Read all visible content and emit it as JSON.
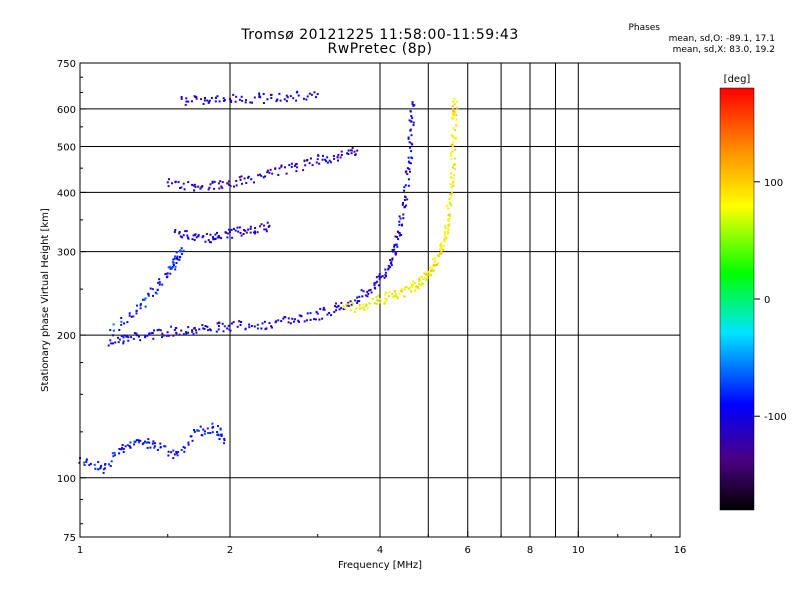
{
  "header": {
    "title_line1": "Tromsø 20121225 11:58:00-11:59:43",
    "title_line2": "RwPretec (8p)",
    "stats_title": "Phases",
    "stats_line1": "mean, sd,O: -89.1, 17.1",
    "stats_line2": "mean, sd,X:  83.0, 19.2"
  },
  "colorbar": {
    "unit_label": "[deg]",
    "range": [
      -180,
      180
    ],
    "ticks": [
      {
        "value": 100,
        "label": "100"
      },
      {
        "value": 0,
        "label": "0"
      },
      {
        "value": -100,
        "label": "-100"
      }
    ]
  },
  "chart_data": {
    "type": "scatter",
    "xlabel": "Frequency [MHz]",
    "ylabel": "Stationary phase Virtual Height [km]",
    "x_scale": "log",
    "y_scale": "log",
    "xlim": [
      1,
      16
    ],
    "ylim": [
      75,
      750
    ],
    "grid": true,
    "x_ticks": [
      {
        "value": 1,
        "label": "1"
      },
      {
        "value": 2,
        "label": "2"
      },
      {
        "value": 4,
        "label": "4"
      },
      {
        "value": 6,
        "label": "6"
      },
      {
        "value": 8,
        "label": "8"
      },
      {
        "value": 10,
        "label": "10"
      },
      {
        "value": 16,
        "label": "16"
      }
    ],
    "x_grid": [
      1,
      2,
      4,
      5,
      6,
      7,
      8,
      9,
      10,
      16
    ],
    "y_ticks": [
      {
        "value": 75,
        "label": "75"
      },
      {
        "value": 100,
        "label": "100"
      },
      {
        "value": 200,
        "label": "200"
      },
      {
        "value": 300,
        "label": "300"
      },
      {
        "value": 400,
        "label": "400"
      },
      {
        "value": 500,
        "label": "500"
      },
      {
        "value": 600,
        "label": "600"
      },
      {
        "value": 750,
        "label": "750"
      }
    ],
    "y_grid": [
      100,
      200,
      300,
      400,
      500,
      600,
      750
    ],
    "color_scale": "phase in degrees, rainbow (black -180 to red +180)",
    "traces": [
      {
        "name": "",
        "points": [
          [
            1.15,
            195
          ],
          [
            1.25,
            198
          ],
          [
            1.4,
            202
          ],
          [
            1.55,
            205
          ],
          [
            1.7,
            207
          ],
          [
            1.9,
            209
          ],
          [
            2.1,
            210
          ],
          [
            2.4,
            212
          ],
          [
            2.7,
            216
          ],
          [
            3.0,
            222
          ],
          [
            3.3,
            230
          ],
          [
            3.6,
            240
          ],
          [
            3.9,
            255
          ],
          [
            4.1,
            275
          ],
          [
            4.25,
            300
          ],
          [
            4.35,
            330
          ],
          [
            4.45,
            380
          ],
          [
            4.55,
            450
          ],
          [
            4.6,
            540
          ],
          [
            4.65,
            620
          ]
        ],
        "phase": -105
      },
      {
        "name": "",
        "points": [
          [
            3.4,
            228
          ],
          [
            3.7,
            232
          ],
          [
            4.0,
            238
          ],
          [
            4.3,
            245
          ],
          [
            4.6,
            252
          ],
          [
            4.8,
            260
          ],
          [
            5.0,
            272
          ],
          [
            5.15,
            285
          ],
          [
            5.3,
            305
          ],
          [
            5.4,
            330
          ],
          [
            5.48,
            370
          ],
          [
            5.55,
            430
          ],
          [
            5.6,
            500
          ],
          [
            5.62,
            580
          ],
          [
            5.64,
            630
          ]
        ],
        "phase": 85
      },
      {
        "name": "",
        "points": [
          [
            1.15,
            205
          ],
          [
            1.3,
            225
          ],
          [
            1.4,
            250
          ],
          [
            1.5,
            270
          ],
          [
            1.55,
            290
          ],
          [
            1.6,
            305
          ]
        ],
        "phase": -85
      },
      {
        "name": "",
        "points": [
          [
            1.55,
            330
          ],
          [
            1.7,
            325
          ],
          [
            1.85,
            320
          ],
          [
            2.0,
            330
          ],
          [
            2.2,
            335
          ],
          [
            2.4,
            340
          ]
        ],
        "phase": -110
      },
      {
        "name": "",
        "points": [
          [
            1.5,
            420
          ],
          [
            1.7,
            415
          ],
          [
            1.9,
            418
          ],
          [
            2.1,
            425
          ],
          [
            2.4,
            440
          ],
          [
            2.7,
            455
          ],
          [
            3.0,
            470
          ],
          [
            3.3,
            480
          ],
          [
            3.6,
            490
          ]
        ],
        "phase": -115
      },
      {
        "name": "",
        "points": [
          [
            1.6,
            630
          ],
          [
            1.8,
            625
          ],
          [
            2.0,
            630
          ],
          [
            2.3,
            635
          ],
          [
            2.6,
            640
          ],
          [
            3.0,
            645
          ]
        ],
        "phase": -110
      },
      {
        "name": "",
        "points": [
          [
            1.0,
            110
          ],
          [
            1.1,
            105
          ],
          [
            1.2,
            115
          ],
          [
            1.3,
            120
          ],
          [
            1.4,
            118
          ],
          [
            1.55,
            112
          ],
          [
            1.7,
            125
          ],
          [
            1.85,
            128
          ],
          [
            1.95,
            120
          ]
        ],
        "phase": -90
      }
    ]
  }
}
